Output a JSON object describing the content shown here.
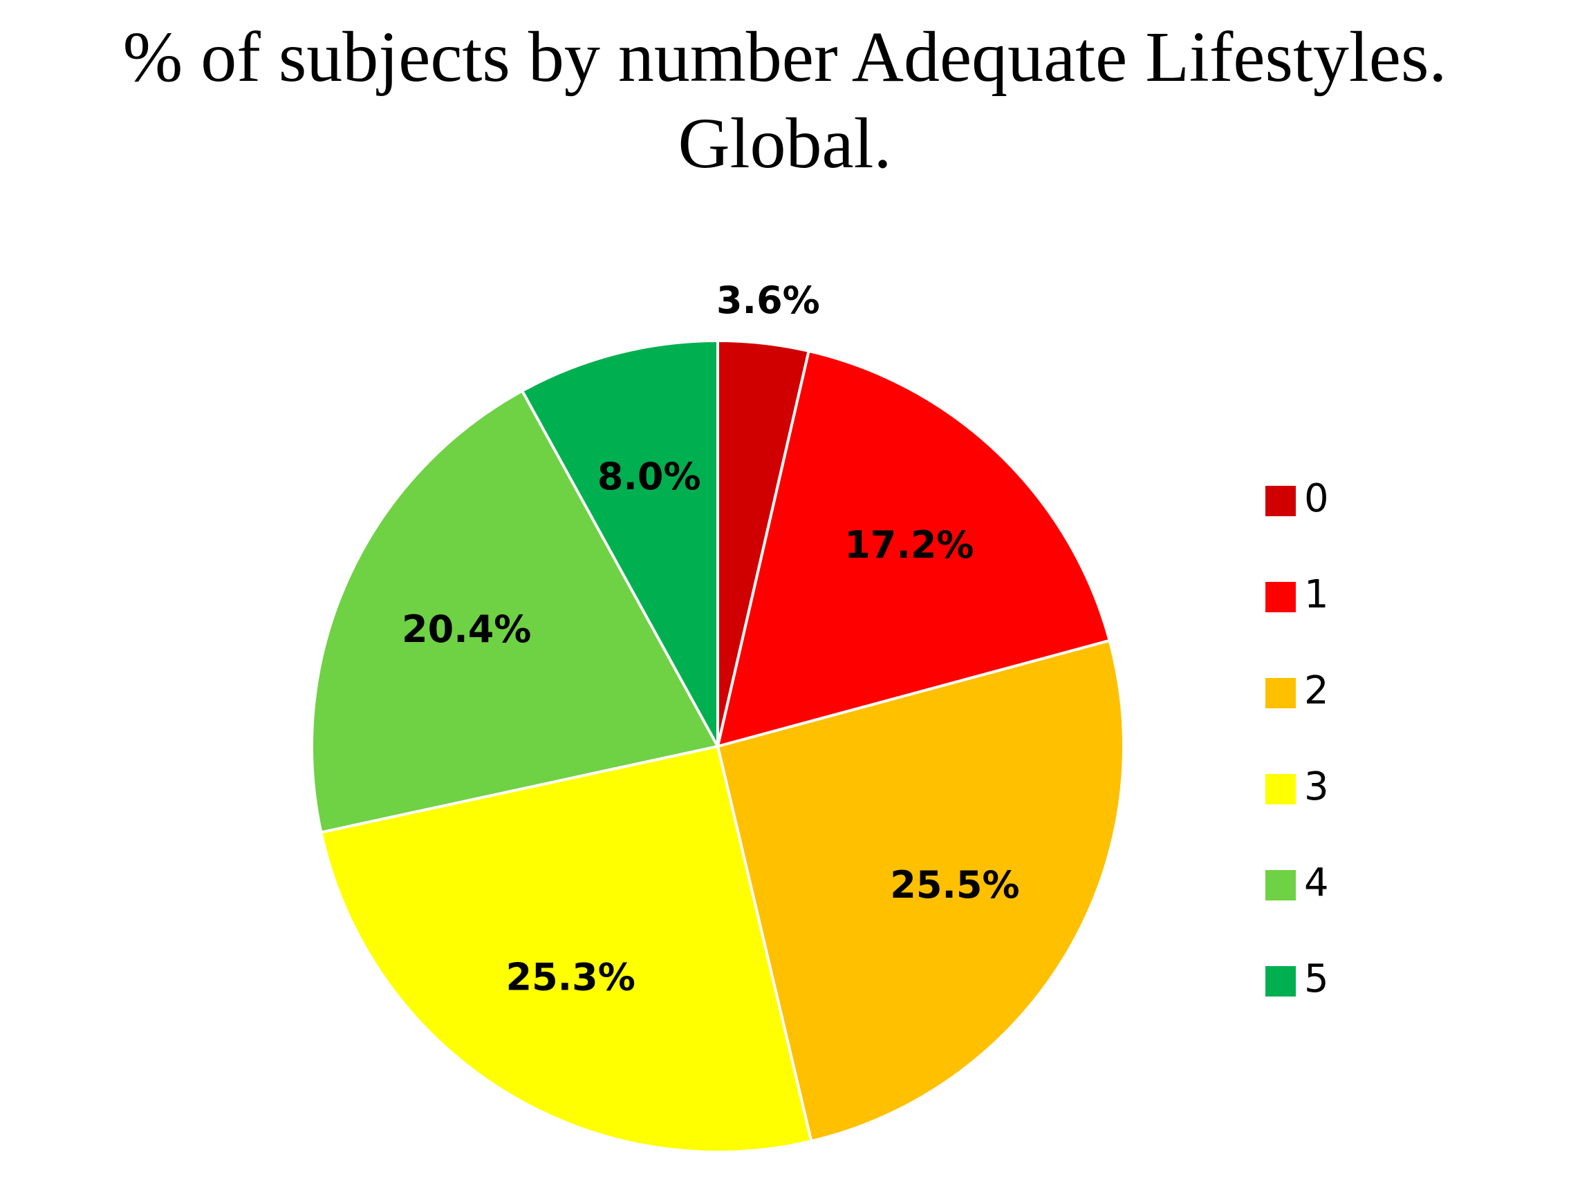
{
  "chart_data": {
    "type": "pie",
    "title": "% of subjects by number Adequate Lifestyles. Global.",
    "categories": [
      "0",
      "1",
      "2",
      "3",
      "4",
      "5"
    ],
    "values": [
      3.6,
      17.2,
      25.5,
      25.3,
      20.4,
      8.0
    ],
    "value_labels": [
      "3.6%",
      "17.2%",
      "25.5%",
      "25.3%",
      "20.4%",
      "8.0%"
    ],
    "colors": [
      "#d00000",
      "#ff0000",
      "#ffc000",
      "#ffff00",
      "#6fd144",
      "#00b050"
    ],
    "legend": "right"
  }
}
